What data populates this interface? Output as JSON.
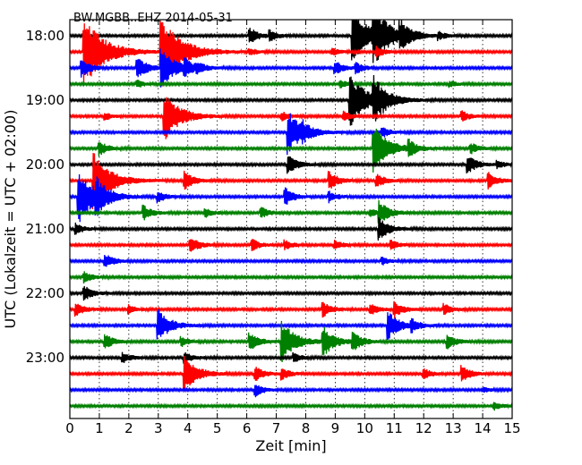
{
  "chart_data": {
    "type": "line",
    "title": "BW.MGBB..EHZ 2014-05-31",
    "xlabel": "Zeit  [min]",
    "ylabel": "UTC (Lokalzeit = UTC + 02:00)",
    "xlim": [
      0,
      15
    ],
    "x_ticks": [
      "0",
      "1",
      "2",
      "3",
      "4",
      "5",
      "6",
      "7",
      "8",
      "9",
      "10",
      "11",
      "12",
      "13",
      "14",
      "15"
    ],
    "y_ticks": [
      "18:00",
      "19:00",
      "20:00",
      "21:00",
      "22:00",
      "23:00"
    ],
    "y_tick_trace_index": [
      0,
      4,
      8,
      12,
      16,
      20
    ],
    "grid": true,
    "trace_interval_min": 15,
    "trace_colors": [
      "#000000",
      "#ff0000",
      "#0000ff",
      "#008000"
    ],
    "traces": [
      {
        "start": "18:00",
        "events": [
          [
            6.1,
            9
          ],
          [
            6.8,
            5
          ],
          [
            9.6,
            30
          ],
          [
            10.3,
            28
          ],
          [
            11.2,
            14
          ],
          [
            12.5,
            4
          ]
        ]
      },
      {
        "start": "18:15",
        "events": [
          [
            0.5,
            40
          ],
          [
            3.1,
            40
          ],
          [
            6.1,
            4
          ],
          [
            8.9,
            4
          ],
          [
            10.4,
            6
          ]
        ]
      },
      {
        "start": "18:30",
        "events": [
          [
            0.4,
            10
          ],
          [
            2.3,
            12
          ],
          [
            3.1,
            22
          ],
          [
            3.9,
            8
          ],
          [
            4.3,
            5
          ],
          [
            9.0,
            8
          ],
          [
            9.7,
            6
          ]
        ]
      },
      {
        "start": "18:45",
        "events": [
          [
            2.3,
            4
          ],
          [
            9.2,
            4
          ],
          [
            12.9,
            3
          ]
        ]
      },
      {
        "start": "19:00",
        "events": [
          [
            9.5,
            30
          ],
          [
            10.3,
            22
          ]
        ]
      },
      {
        "start": "19:15",
        "events": [
          [
            1.2,
            4
          ],
          [
            3.2,
            28
          ],
          [
            7.2,
            5
          ],
          [
            9.3,
            5
          ],
          [
            13.3,
            6
          ]
        ]
      },
      {
        "start": "19:30",
        "events": [
          [
            7.4,
            24
          ],
          [
            7.9,
            6
          ],
          [
            10.6,
            6
          ]
        ]
      },
      {
        "start": "19:45",
        "events": [
          [
            1.0,
            8
          ],
          [
            10.3,
            26
          ],
          [
            11.5,
            8
          ],
          [
            13.6,
            6
          ]
        ]
      },
      {
        "start": "20:00",
        "events": [
          [
            7.4,
            10
          ],
          [
            13.5,
            10
          ],
          [
            14.5,
            4
          ]
        ]
      },
      {
        "start": "20:15",
        "events": [
          [
            0.8,
            32
          ],
          [
            3.9,
            10
          ],
          [
            8.8,
            10
          ],
          [
            10.4,
            8
          ],
          [
            14.2,
            9
          ]
        ]
      },
      {
        "start": "20:30",
        "events": [
          [
            0.3,
            30
          ],
          [
            0.9,
            14
          ],
          [
            3.0,
            6
          ],
          [
            7.3,
            10
          ],
          [
            8.8,
            6
          ]
        ]
      },
      {
        "start": "20:45",
        "events": [
          [
            2.5,
            8
          ],
          [
            4.6,
            5
          ],
          [
            6.5,
            6
          ],
          [
            10.2,
            4
          ],
          [
            10.5,
            12
          ]
        ]
      },
      {
        "start": "21:00",
        "events": [
          [
            0.2,
            6
          ],
          [
            10.5,
            12
          ]
        ]
      },
      {
        "start": "21:15",
        "events": [
          [
            4.1,
            9
          ],
          [
            6.2,
            6
          ],
          [
            7.3,
            5
          ],
          [
            9.0,
            5
          ],
          [
            10.9,
            5
          ]
        ]
      },
      {
        "start": "21:30",
        "events": [
          [
            1.2,
            8
          ],
          [
            10.6,
            4
          ]
        ]
      },
      {
        "start": "21:45",
        "events": [
          [
            0.5,
            6
          ]
        ]
      },
      {
        "start": "22:00",
        "events": [
          [
            0.5,
            8
          ]
        ]
      },
      {
        "start": "22:15",
        "events": [
          [
            0.2,
            8
          ],
          [
            2.0,
            5
          ],
          [
            8.6,
            8
          ],
          [
            10.2,
            6
          ],
          [
            11.0,
            9
          ],
          [
            12.7,
            6
          ]
        ]
      },
      {
        "start": "22:30",
        "events": [
          [
            3.0,
            18
          ],
          [
            10.8,
            16
          ],
          [
            11.6,
            6
          ]
        ]
      },
      {
        "start": "22:45",
        "events": [
          [
            1.2,
            8
          ],
          [
            3.8,
            5
          ],
          [
            6.1,
            10
          ],
          [
            7.2,
            22
          ],
          [
            8.6,
            16
          ],
          [
            9.6,
            10
          ],
          [
            12.8,
            8
          ]
        ]
      },
      {
        "start": "23:00",
        "events": [
          [
            1.8,
            6
          ],
          [
            3.9,
            6
          ],
          [
            7.6,
            5
          ]
        ]
      },
      {
        "start": "23:15",
        "events": [
          [
            3.9,
            20
          ],
          [
            6.3,
            8
          ],
          [
            7.2,
            6
          ],
          [
            12.0,
            6
          ],
          [
            13.3,
            9
          ]
        ]
      },
      {
        "start": "23:30",
        "events": [
          [
            6.3,
            7
          ],
          [
            14.0,
            3
          ]
        ]
      },
      {
        "start": "23:45",
        "events": [
          [
            14.4,
            4
          ]
        ]
      }
    ]
  }
}
